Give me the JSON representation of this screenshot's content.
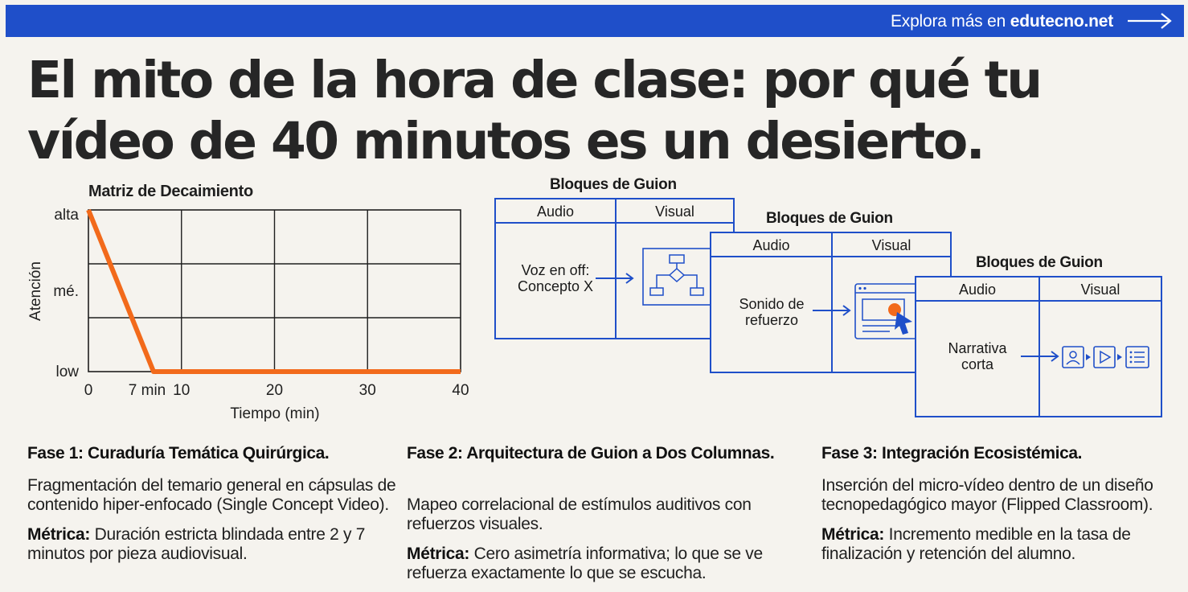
{
  "topbar": {
    "text_prefix": "Explora más en",
    "link": "edutecno.net",
    "arrow_icon": "arrow-right-icon",
    "color": "#1f4fc9"
  },
  "headline": "El mito de la hora de clase: por qué tu vídeo de 40 minutos es un desierto.",
  "chart_data": {
    "type": "line",
    "title": "Matriz de Decaimiento",
    "xlabel": "Tiempo (min)",
    "ylabel": "Atención",
    "x_ticks": [
      "0",
      "7 min",
      "10",
      "20",
      "30",
      "40"
    ],
    "y_ticks": [
      "alta",
      "mé.",
      "low"
    ],
    "xlim": [
      0,
      40
    ],
    "ylim": [
      "low",
      "alta"
    ],
    "grid": true,
    "line_color": "#f26a1b",
    "series": [
      {
        "x": [
          0,
          7,
          40
        ],
        "y": [
          "alta",
          "low",
          "low"
        ]
      }
    ]
  },
  "blocks": [
    {
      "title": "Bloques de Guion",
      "audio_header": "Audio",
      "visual_header": "Visual",
      "audio_text": "Voz en off: Concepto X",
      "visual_icon": "flowchart-icon"
    },
    {
      "title": "Bloques de Guion",
      "audio_header": "Audio",
      "visual_header": "Visual",
      "audio_text": "Sonido de refuerzo",
      "visual_icon": "click-interface-icon"
    },
    {
      "title": "Bloques de Guion",
      "audio_header": "Audio",
      "visual_header": "Visual",
      "audio_text": "Narrativa corta",
      "visual_icon": "user-play-list-icons"
    }
  ],
  "phases": [
    {
      "title": "Fase 1: Curaduría Temática Quirúrgica.",
      "description": "Fragmentación del temario general en cápsulas de contenido hiper-enfocado (Single Concept Video).",
      "metric_label": "Métrica:",
      "metric_text": "Duración estricta blindada entre 2 y 7 minutos por pieza audiovisual."
    },
    {
      "title": "Fase 2: Arquitectura de Guion a Dos Columnas.",
      "description": "Mapeo correlacional de estímulos auditivos con refuerzos visuales.",
      "metric_label": "Métrica:",
      "metric_text": "Cero asimetría informativa; lo que se ve refuerza exactamente lo que se escucha."
    },
    {
      "title": "Fase 3: Integración Ecosistémica.",
      "description": "Inserción del micro-vídeo dentro de un diseño tecnopedagógico mayor (Flipped Classroom).",
      "metric_label": "Métrica:",
      "metric_text": "Incremento medible en la tasa de finalización y retención del alumno."
    }
  ]
}
